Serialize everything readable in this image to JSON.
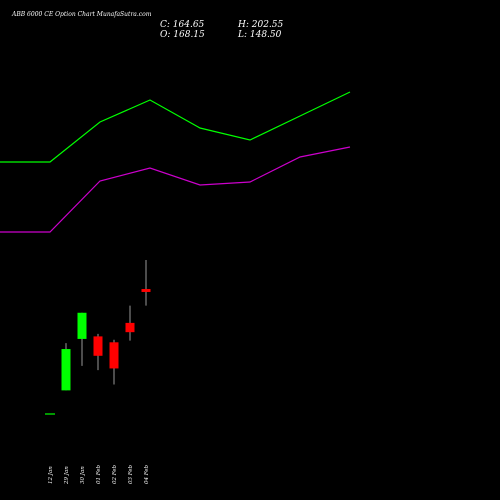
{
  "header": {
    "title": "ABB 6000 CE Option Chart MunafaSutra.com",
    "close": "C: 164.65",
    "high": "H: 202.55",
    "open": "O: 168.15",
    "low": "L: 148.50"
  },
  "chart_data": {
    "type": "candlestick",
    "title": "ABB 6000 CE Option Chart MunafaSutra.com",
    "dates": [
      "12 Jan",
      "29 Jan",
      "30 Jan",
      "01 Feb",
      "02 Feb",
      "03 Feb",
      "04 Feb"
    ],
    "candles": [
      {
        "date": "12 Jan",
        "open": 20,
        "high": 20,
        "low": 20,
        "close": 20,
        "color": "#00ff00"
      },
      {
        "date": "29 Jan",
        "open": 48,
        "high": 104,
        "low": 48,
        "close": 97,
        "color": "#00ff00"
      },
      {
        "date": "30 Jan",
        "open": 109,
        "high": 140,
        "low": 77,
        "close": 140,
        "color": "#00ff00"
      },
      {
        "date": "01 Feb",
        "open": 112,
        "high": 115,
        "low": 72,
        "close": 89,
        "color": "#ff0000"
      },
      {
        "date": "02 Feb",
        "open": 105,
        "high": 108,
        "low": 55,
        "close": 74,
        "color": "#ff0000"
      },
      {
        "date": "03 Feb",
        "open": 128,
        "high": 148.5,
        "low": 107,
        "close": 117,
        "color": "#ff0000"
      },
      {
        "date": "04 Feb",
        "open": 168.15,
        "high": 202.55,
        "low": 148.5,
        "close": 164.65,
        "color": "#ff0000"
      }
    ],
    "ylim": [
      0,
      200
    ],
    "overlays": [
      {
        "color": "#00ff00",
        "points": [
          [
            0,
            162
          ],
          [
            50,
            162
          ],
          [
            100,
            122
          ],
          [
            150,
            100
          ],
          [
            200,
            128
          ],
          [
            250,
            140
          ],
          [
            300,
            116
          ],
          [
            350,
            92
          ]
        ]
      },
      {
        "color": "#cc00cc",
        "points": [
          [
            0,
            232
          ],
          [
            50,
            232
          ],
          [
            100,
            181
          ],
          [
            150,
            168
          ],
          [
            200,
            185
          ],
          [
            250,
            182
          ],
          [
            300,
            157
          ],
          [
            350,
            147
          ]
        ]
      }
    ],
    "colors": {
      "up": "#00ff00",
      "down": "#ff0000",
      "background": "#000000",
      "text": "#ffffff"
    }
  }
}
